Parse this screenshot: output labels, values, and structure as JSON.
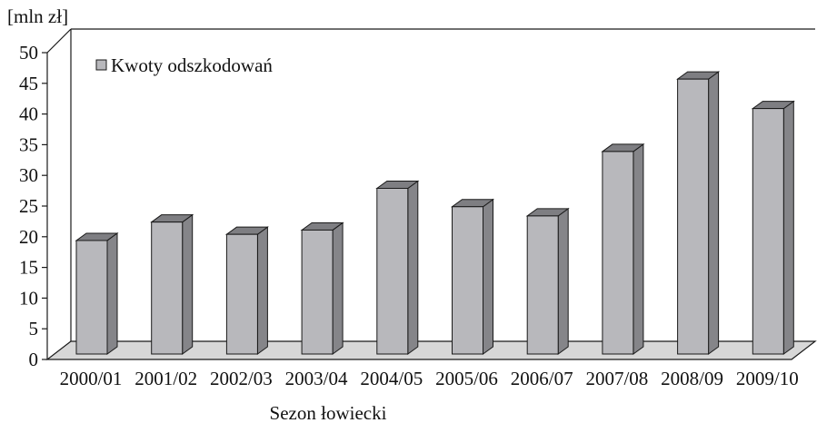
{
  "chart_data": {
    "type": "bar",
    "title": "",
    "unit_label": "[mln zł]",
    "xlabel": "Sezon łowiecki",
    "ylabel": "",
    "categories": [
      "2000/01",
      "2001/02",
      "2002/03",
      "2003/04",
      "2004/05",
      "2005/06",
      "2006/07",
      "2007/08",
      "2008/09",
      "2009/10"
    ],
    "series": [
      {
        "name": "Kwoty odszkodowań",
        "values": [
          18.5,
          21.5,
          19.5,
          20.2,
          27,
          24,
          22.5,
          33,
          44.8,
          40
        ]
      }
    ],
    "ylim": [
      0,
      50
    ],
    "yticks": [
      0,
      5,
      10,
      15,
      20,
      25,
      30,
      35,
      40,
      45,
      50
    ],
    "legend_position": "top-left",
    "grid": false,
    "style": "3d",
    "colors": {
      "bar_front": "#b8b8bc",
      "bar_side": "#858589",
      "bar_top": "#7e7e82",
      "floor": "#d7d7d7",
      "outline": "#1a1a1a"
    }
  }
}
